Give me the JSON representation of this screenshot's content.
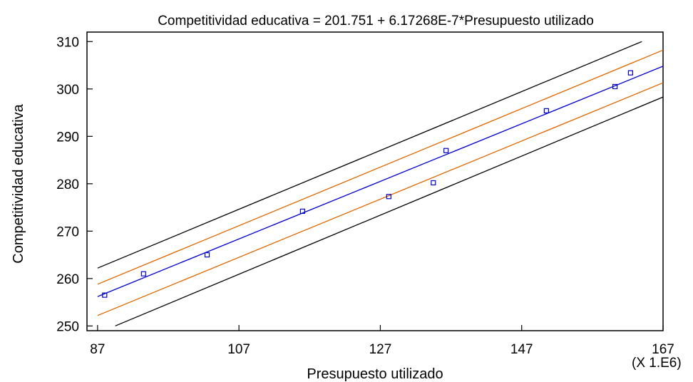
{
  "chart_data": {
    "type": "scatter",
    "title": "Competitividad educativa = 201.751 + 6.17268E-7*Presupuesto utilizado",
    "xlabel": "Presupuesto utilizado",
    "ylabel": "Competitividad educativa",
    "x_multiplier_label": "(X 1.E6)",
    "xlim": [
      85.5,
      167
    ],
    "ylim": [
      249,
      312
    ],
    "xticks": [
      87,
      107,
      127,
      147,
      167
    ],
    "yticks": [
      250,
      260,
      270,
      280,
      290,
      300,
      310
    ],
    "grid": false,
    "regression": {
      "intercept": 201.751,
      "slope": 0.617268
    },
    "series": [
      {
        "type": "scatter",
        "marker": "square",
        "color": "#0000cc",
        "x": [
          88.0,
          93.5,
          102.5,
          116.0,
          128.2,
          134.5,
          136.3,
          150.5,
          160.2,
          162.4
        ],
        "y": [
          256.5,
          261.0,
          265.0,
          274.2,
          277.3,
          280.2,
          287.0,
          295.4,
          300.5,
          303.4
        ]
      },
      {
        "type": "line",
        "color": "#0000cc",
        "x": [
          87.0,
          167.0
        ],
        "y": [
          256.2,
          304.8
        ]
      },
      {
        "type": "line",
        "color": "#dd6600",
        "x": [
          87.0,
          167.0
        ],
        "y": [
          258.8,
          308.2
        ]
      },
      {
        "type": "line",
        "color": "#dd6600",
        "x": [
          87.0,
          167.0
        ],
        "y": [
          252.2,
          301.3
        ]
      },
      {
        "type": "line",
        "color": "#000000",
        "x": [
          87.0,
          164.0
        ],
        "y": [
          262.2,
          310.0
        ]
      },
      {
        "type": "line",
        "color": "#000000",
        "x": [
          89.5,
          167.0
        ],
        "y": [
          250.0,
          298.3
        ]
      }
    ]
  }
}
